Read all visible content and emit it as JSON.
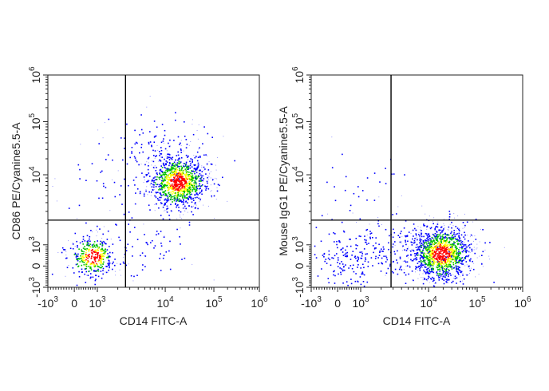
{
  "chart_data": [
    {
      "type": "scatter",
      "subtype": "flow-cytometry-density-dot-plot",
      "xlabel": "CD14 FITC-A",
      "ylabel": "CD86 PE/Cyanine5.5-A",
      "x_scale": "biexponential",
      "y_scale": "biexponential",
      "xlim": [
        -1000,
        1000000
      ],
      "ylim": [
        -1000,
        1000000
      ],
      "x_ticks": [
        {
          "base": "-10",
          "exp": "3"
        },
        {
          "base": "0",
          "exp": ""
        },
        {
          "base": "10",
          "exp": "3"
        },
        {
          "base": "10",
          "exp": "4"
        },
        {
          "base": "10",
          "exp": "5"
        },
        {
          "base": "10",
          "exp": "6"
        }
      ],
      "y_ticks": [
        {
          "base": "-10",
          "exp": "3"
        },
        {
          "base": "0",
          "exp": ""
        },
        {
          "base": "10",
          "exp": "3"
        },
        {
          "base": "10",
          "exp": "4"
        },
        {
          "base": "10",
          "exp": "5"
        },
        {
          "base": "10",
          "exp": "6"
        }
      ],
      "quadrant_gate": {
        "x": 2600,
        "y": 2250
      },
      "populations": [
        {
          "x_center": 18000,
          "y_center": 8000,
          "count": 1100
        },
        {
          "x_center": 800,
          "y_center": 450,
          "count": 380
        },
        {
          "x_center": 9000,
          "y_center": 30000,
          "count": 120
        },
        {
          "x_center": 5000,
          "y_center": 1000,
          "count": 70
        },
        {
          "x_center": 1500,
          "y_center": 8000,
          "count": 40
        }
      ],
      "density_colors": [
        "#0000ff",
        "#00c000",
        "#ffff00",
        "#ff0000"
      ]
    },
    {
      "type": "scatter",
      "subtype": "flow-cytometry-density-dot-plot",
      "xlabel": "CD14 FITC-A",
      "ylabel": "Mouse IgG1 PE/Cyanine5.5-A",
      "x_scale": "biexponential",
      "y_scale": "biexponential",
      "xlim": [
        -1000,
        1000000
      ],
      "ylim": [
        -1000,
        1000000
      ],
      "x_ticks": [
        {
          "base": "-10",
          "exp": "3"
        },
        {
          "base": "0",
          "exp": ""
        },
        {
          "base": "10",
          "exp": "3"
        },
        {
          "base": "10",
          "exp": "4"
        },
        {
          "base": "10",
          "exp": "5"
        },
        {
          "base": "10",
          "exp": "6"
        }
      ],
      "y_ticks": [
        {
          "base": "-10",
          "exp": "3"
        },
        {
          "base": "0",
          "exp": ""
        },
        {
          "base": "10",
          "exp": "3"
        },
        {
          "base": "10",
          "exp": "4"
        },
        {
          "base": "10",
          "exp": "5"
        },
        {
          "base": "10",
          "exp": "6"
        }
      ],
      "quadrant_gate": {
        "x": 2800,
        "y": 2250
      },
      "populations": [
        {
          "x_center": 18000,
          "y_center": 600,
          "count": 1200
        },
        {
          "x_center": 700,
          "y_center": 450,
          "count": 220
        },
        {
          "x_center": 6000,
          "y_center": 800,
          "count": 150
        },
        {
          "x_center": 900,
          "y_center": 10000,
          "count": 25
        }
      ],
      "density_colors": [
        "#0000ff",
        "#00c000",
        "#ffff00",
        "#ff0000"
      ]
    }
  ]
}
